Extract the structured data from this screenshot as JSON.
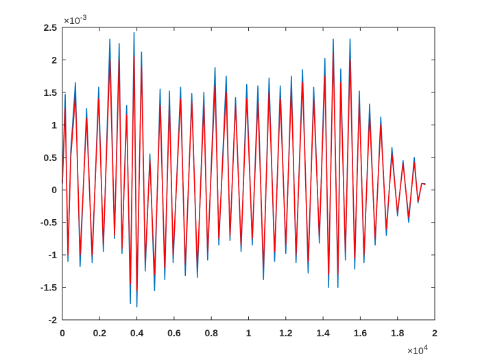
{
  "chart_data": {
    "type": "line",
    "title": "",
    "xlabel": "",
    "ylabel": "",
    "xlim": [
      0,
      20000
    ],
    "ylim": [
      -0.002,
      0.0025
    ],
    "x_exponent_label": {
      "base": "×10",
      "power": "4"
    },
    "y_exponent_label": {
      "base": "×10",
      "power": "-3"
    },
    "xticks": [
      0,
      2000,
      4000,
      6000,
      8000,
      10000,
      12000,
      14000,
      16000,
      18000,
      20000
    ],
    "xtick_labels": [
      "0",
      "0.2",
      "0.4",
      "0.6",
      "0.8",
      "1",
      "1.2",
      "1.4",
      "1.6",
      "1.8",
      "2"
    ],
    "yticks": [
      -0.002,
      -0.0015,
      -0.001,
      -0.0005,
      0,
      0.0005,
      0.001,
      0.0015,
      0.002,
      0.0025
    ],
    "ytick_labels": [
      "-2",
      "-1.5",
      "-1",
      "-0.5",
      "0",
      "0.5",
      "1",
      "1.5",
      "2",
      "2.5"
    ],
    "grid": false,
    "legend": "none",
    "series": [
      {
        "color": "#0072BD",
        "x": [
          0,
          150,
          300,
          450,
          700,
          950,
          1300,
          1600,
          1950,
          2200,
          2550,
          2800,
          3050,
          3200,
          3450,
          3650,
          3850,
          4000,
          4250,
          4450,
          4700,
          4950,
          5250,
          5500,
          5750,
          5950,
          6350,
          6600,
          6950,
          7250,
          7600,
          7800,
          8200,
          8400,
          8800,
          9000,
          9300,
          9600,
          9900,
          10200,
          10500,
          10800,
          11100,
          11400,
          11700,
          12000,
          12300,
          12550,
          12900,
          13200,
          13500,
          13800,
          14100,
          14300,
          14550,
          14800,
          14950,
          15200,
          15450,
          15700,
          15950,
          16200,
          16500,
          16800,
          17100,
          17400,
          17700,
          18000,
          18300,
          18600,
          18900,
          19100,
          19300,
          19500
        ],
        "y": [
          0.0001,
          0.00147,
          -0.0011,
          0.0006,
          0.00165,
          -0.00118,
          0.00125,
          -0.00112,
          0.00158,
          -0.00095,
          0.00232,
          -0.00075,
          0.00225,
          -0.00098,
          0.0013,
          -0.00175,
          0.00242,
          -0.0018,
          0.00212,
          -0.00125,
          0.00055,
          -0.00155,
          0.00155,
          -0.00138,
          0.00152,
          -0.00112,
          0.00158,
          -0.00132,
          0.00148,
          -0.00135,
          0.0015,
          -0.00108,
          0.00188,
          -0.00085,
          0.00175,
          -0.00078,
          0.00142,
          -0.00095,
          0.00162,
          -0.00085,
          0.0016,
          -0.00138,
          0.00172,
          -0.0011,
          0.0016,
          -0.00098,
          0.00175,
          -0.00112,
          0.00185,
          -0.00128,
          0.00158,
          -0.00082,
          0.00202,
          -0.0015,
          0.00232,
          -0.0015,
          0.00186,
          -0.00108,
          0.00232,
          -0.00122,
          0.00152,
          -0.00112,
          0.00132,
          -0.00085,
          0.00112,
          -0.0007,
          0.00065,
          -0.0004,
          0.00045,
          -0.0005,
          0.0005,
          -0.0002,
          0.0001,
          0.0001
        ]
      },
      {
        "color": "#FF0000",
        "x": [
          0,
          150,
          300,
          450,
          700,
          950,
          1300,
          1600,
          1950,
          2200,
          2550,
          2800,
          3050,
          3200,
          3450,
          3650,
          3850,
          4000,
          4250,
          4450,
          4700,
          4950,
          5250,
          5500,
          5750,
          5950,
          6350,
          6600,
          6950,
          7250,
          7600,
          7800,
          8200,
          8400,
          8800,
          9000,
          9300,
          9600,
          9900,
          10200,
          10500,
          10800,
          11100,
          11400,
          11700,
          12000,
          12300,
          12550,
          12900,
          13200,
          13500,
          13800,
          14100,
          14300,
          14550,
          14800,
          14950,
          15200,
          15450,
          15700,
          15950,
          16200,
          16500,
          16800,
          17100,
          17400,
          17700,
          18000,
          18300,
          18600,
          18900,
          19100,
          19300,
          19500
        ],
        "y": [
          0.0001,
          0.00125,
          -0.001,
          0.0005,
          0.00145,
          -0.001,
          0.0011,
          -0.001,
          0.0014,
          -0.00085,
          0.002,
          -0.0007,
          0.002,
          -0.0009,
          0.00115,
          -0.00145,
          0.00205,
          -0.00155,
          0.0019,
          -0.0011,
          0.00045,
          -0.0013,
          0.0013,
          -0.0012,
          0.0013,
          -0.001,
          0.0014,
          -0.00115,
          0.00135,
          -0.0012,
          0.0013,
          -0.00095,
          0.0016,
          -0.00075,
          0.0015,
          -0.0007,
          0.0013,
          -0.00085,
          0.0014,
          -0.00075,
          0.00135,
          -0.0012,
          0.0015,
          -0.00095,
          0.0014,
          -0.00085,
          0.00155,
          -0.001,
          0.00165,
          -0.0011,
          0.0014,
          -0.00072,
          0.00175,
          -0.0013,
          0.0021,
          -0.0013,
          0.00165,
          -0.00095,
          0.002,
          -0.00105,
          0.00135,
          -0.001,
          0.00115,
          -0.00075,
          0.001,
          -0.0006,
          0.00055,
          -0.00035,
          0.0004,
          -0.00042,
          0.00042,
          -0.00018,
          0.0001,
          8e-05
        ]
      }
    ]
  }
}
